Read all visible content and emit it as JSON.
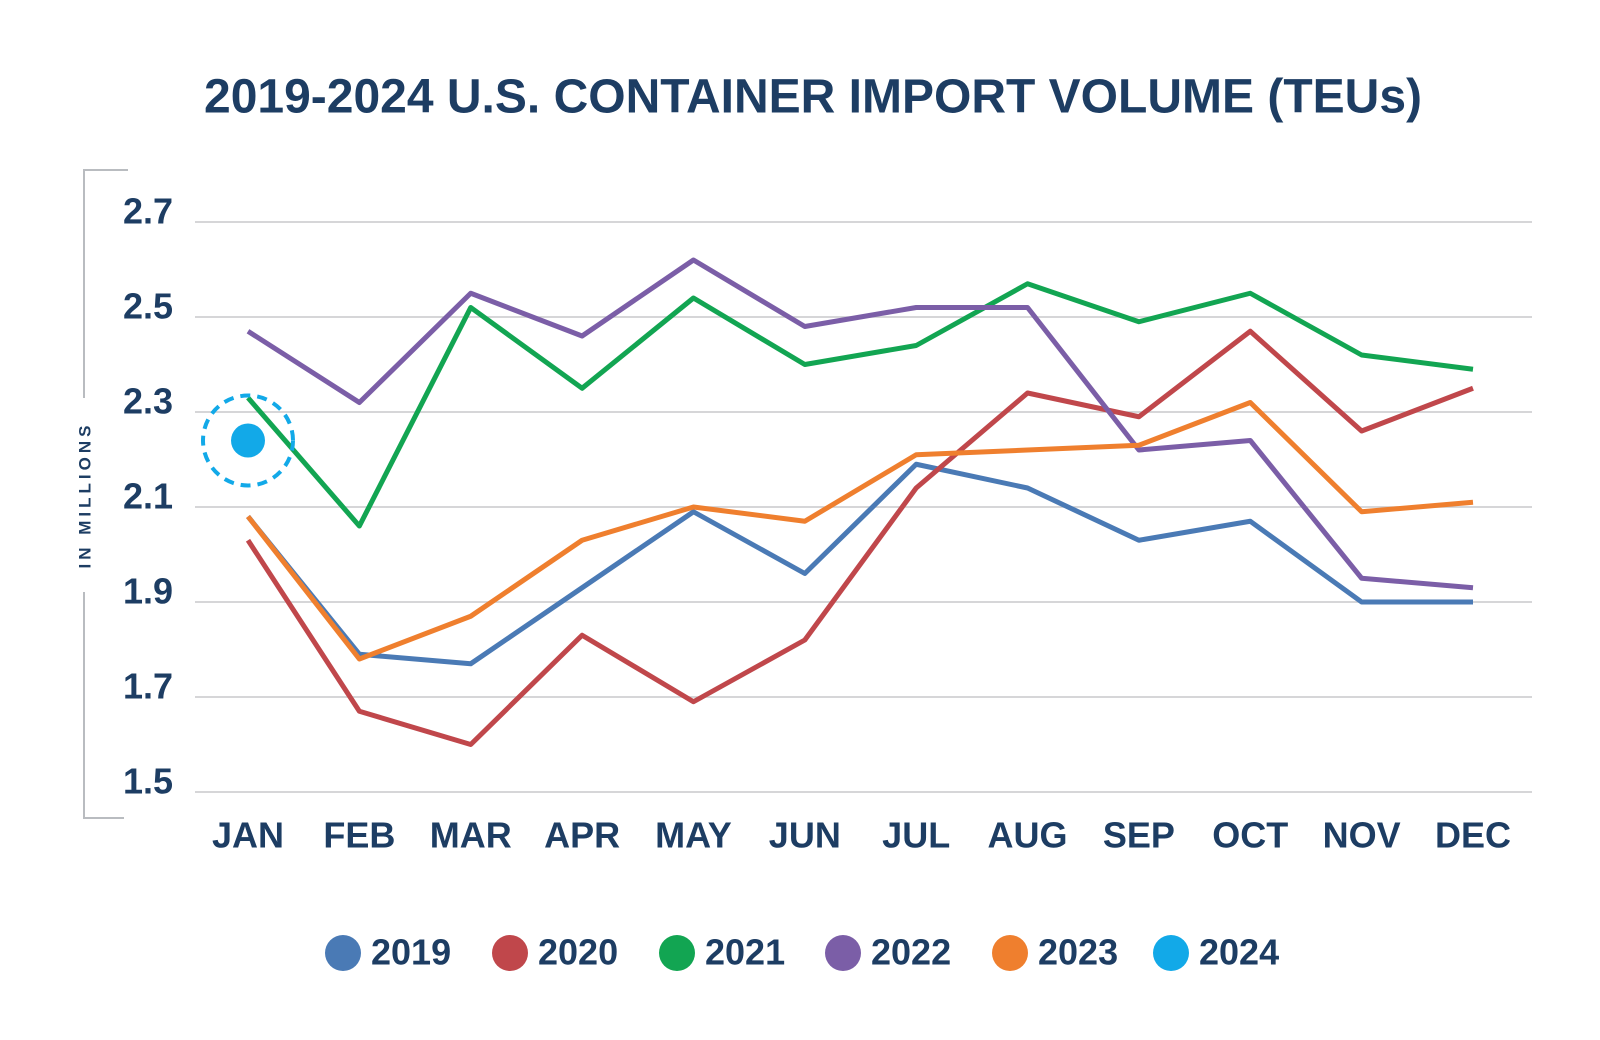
{
  "chart_data": {
    "type": "line",
    "title": "2019-2024 U.S. CONTAINER IMPORT VOLUME (TEUs)",
    "y_label": "IN MILLIONS",
    "categories": [
      "JAN",
      "FEB",
      "MAR",
      "APR",
      "MAY",
      "JUN",
      "JUL",
      "AUG",
      "SEP",
      "OCT",
      "NOV",
      "DEC"
    ],
    "ylim": [
      1.5,
      2.7
    ],
    "yticks": [
      1.5,
      1.7,
      1.9,
      2.1,
      2.3,
      2.5,
      2.7
    ],
    "grid": true,
    "legend": "bottom",
    "series": [
      {
        "name": "2019",
        "color": "#4a7ab5",
        "values": [
          2.08,
          1.79,
          1.77,
          1.93,
          2.09,
          1.96,
          2.19,
          2.14,
          2.03,
          2.07,
          1.9,
          1.9
        ]
      },
      {
        "name": "2020",
        "color": "#c0474b",
        "values": [
          2.03,
          1.67,
          1.6,
          1.83,
          1.69,
          1.82,
          2.14,
          2.34,
          2.29,
          2.47,
          2.26,
          2.35
        ]
      },
      {
        "name": "2021",
        "color": "#12a552",
        "values": [
          2.33,
          2.06,
          2.52,
          2.35,
          2.54,
          2.4,
          2.44,
          2.57,
          2.49,
          2.55,
          2.42,
          2.39
        ]
      },
      {
        "name": "2022",
        "color": "#7b5ea7",
        "values": [
          2.47,
          2.32,
          2.55,
          2.46,
          2.62,
          2.48,
          2.52,
          2.52,
          2.22,
          2.24,
          1.95,
          1.93
        ]
      },
      {
        "name": "2023",
        "color": "#ef7f2e",
        "values": [
          2.08,
          1.78,
          1.87,
          2.03,
          2.1,
          2.07,
          2.21,
          2.22,
          2.23,
          2.32,
          2.09,
          2.11
        ]
      },
      {
        "name": "2024",
        "color": "#12a9e8",
        "values": [
          2.24,
          null,
          null,
          null,
          null,
          null,
          null,
          null,
          null,
          null,
          null,
          null
        ]
      }
    ]
  }
}
